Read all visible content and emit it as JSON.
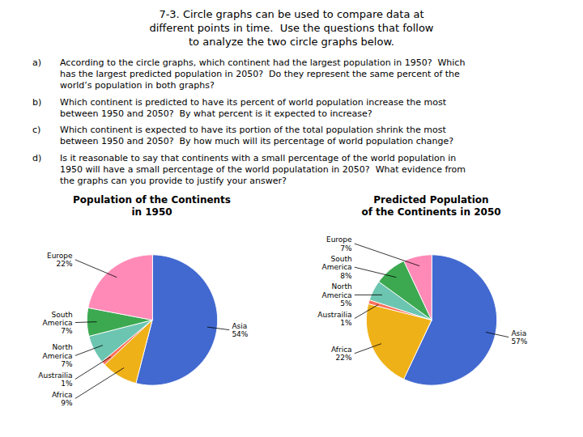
{
  "title": "7-3. Circle graphs can be used to compare data at\ndifferent points in time.  Use the questions that follow\nto analyze the two circle graphs below.",
  "annotations": [
    {
      "label": "a)",
      "text": "According to the circle graphs, which continent had the largest population in 1950?  Which\nhas the largest predicted population in 2050?  Do they represent the same percent of the\nworld’s population in both graphs?"
    },
    {
      "label": "b)",
      "text": "Which continent is predicted to have its percent of world population increase the most\nbetween 1950 and 2050?  By what percent is it expected to increase?"
    },
    {
      "label": "c)",
      "text": "Which continent is expected to have its portion of the total population shrink the most\nbetween 1950 and 2050?  By how much will its percentage of world population change?"
    },
    {
      "label": "d)",
      "text": "Is it reasonable to say that continents with a small percentage of the world population in\n1950 will have a small percentage of the world populatation in 2050?  What evidence from\nthe graphs can you provide to justify your answer?"
    }
  ],
  "chart_data": [
    {
      "type": "pie",
      "title": "Population of the Continents\nin 1950",
      "categories": [
        "Asia",
        "Africa",
        "Austrailia",
        "North\nAmerica",
        "South\nAmerica",
        "Europe"
      ],
      "values": [
        54,
        9,
        1,
        7,
        7,
        22
      ],
      "value_labels": [
        "54%",
        "9%",
        "1%",
        "7%",
        "7%",
        "22%"
      ],
      "data_labels": true
    },
    {
      "type": "pie",
      "title": "Predicted Population\nof the Continents in 2050",
      "categories": [
        "Asia",
        "Africa",
        "Austrailia",
        "North\nAmerica",
        "South\nAmerica",
        "Europe"
      ],
      "values": [
        57,
        22,
        1,
        5,
        8,
        7
      ],
      "value_labels": [
        "57%",
        "22%",
        "1%",
        "5%",
        "8%",
        "7%"
      ],
      "data_labels": true
    }
  ]
}
